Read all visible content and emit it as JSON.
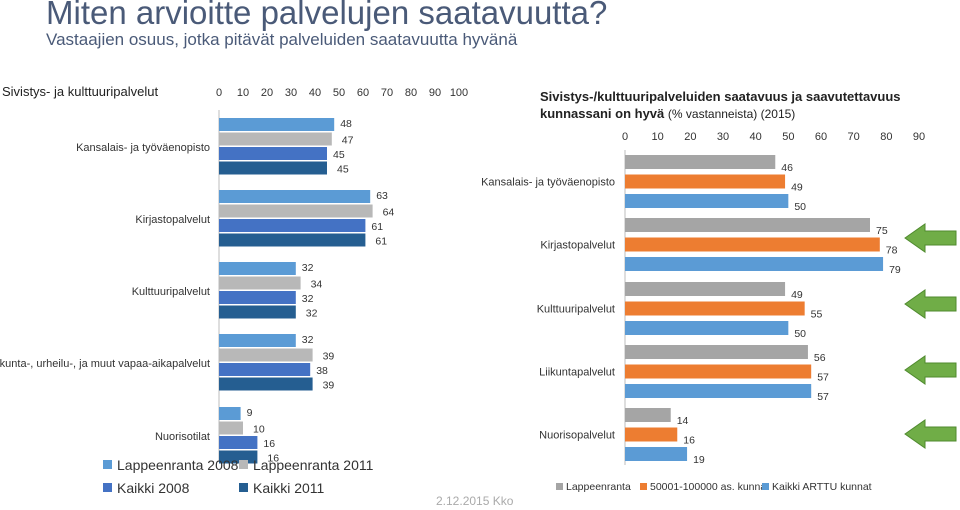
{
  "page": {
    "title": "Miten arvioitte palvelujen saatavuutta?",
    "subtitle": "Vastaajien osuus, jotka pitävät palveluiden saatavuutta hyvänä",
    "footer": "2.12.2015 Kko"
  },
  "chart_data": [
    {
      "type": "bar",
      "orientation": "horizontal",
      "title": "Sivistys- ja kulttuuripalvelut",
      "categories": [
        "Kansalais- ja työväenopisto",
        "Kirjastopalvelut",
        "Kulttuuripalvelut",
        "Liikunta-, urheilu-, ja muut vapaa-aikapalvelut",
        "Nuorisotilat"
      ],
      "series": [
        {
          "name": "Lappeenranta 2008",
          "color": "#5b9bd5",
          "values": [
            48,
            63,
            32,
            32,
            9
          ]
        },
        {
          "name": "Lappeenranta 2011",
          "color": "#b8b8b8",
          "values": [
            47,
            64,
            34,
            39,
            10
          ]
        },
        {
          "name": "Kaikki 2008",
          "color": "#4472c4",
          "values": [
            45,
            61,
            32,
            38,
            16
          ]
        },
        {
          "name": "Kaikki  2011",
          "color": "#255e91",
          "values": [
            45,
            61,
            32,
            39,
            16
          ]
        }
      ],
      "xlim": [
        0,
        100
      ],
      "xticks": [
        "0",
        "10",
        "20",
        "30",
        "40",
        "50",
        "60",
        "70",
        "80",
        "90",
        "100"
      ],
      "legend": "bottom"
    },
    {
      "type": "bar",
      "orientation": "horizontal",
      "title": "Sivistys-/kulttuuripalveluiden saatavuus ja saavutettavuus kunnassani on hyvä",
      "title_suffix": "(% vastanneista) (2015)",
      "categories": [
        "Kansalais- ja työväenopisto",
        "Kirjastopalvelut",
        "Kulttuuripalvelut",
        "Liikuntapalvelut",
        "Nuorisopalvelut"
      ],
      "series": [
        {
          "name": "Lappeenranta",
          "color": "#a5a5a5",
          "values": [
            46,
            75,
            49,
            56,
            14
          ]
        },
        {
          "name": "50001-100000 as. kunnat",
          "color": "#ed7d31",
          "values": [
            49,
            78,
            55,
            57,
            16
          ]
        },
        {
          "name": "Kaikki ARTTU kunnat",
          "color": "#5b9bd5",
          "values": [
            50,
            79,
            50,
            57,
            19
          ]
        }
      ],
      "xlim": [
        0,
        90
      ],
      "xticks": [
        "0",
        "10",
        "20",
        "30",
        "40",
        "50",
        "60",
        "70",
        "80",
        "90"
      ],
      "legend": "bottom",
      "highlight_arrows": [
        "Kirjastopalvelut",
        "Kulttuuripalvelut",
        "Liikuntapalvelut",
        "Nuorisopalvelut"
      ],
      "arrow_color": "#70ad47"
    }
  ]
}
